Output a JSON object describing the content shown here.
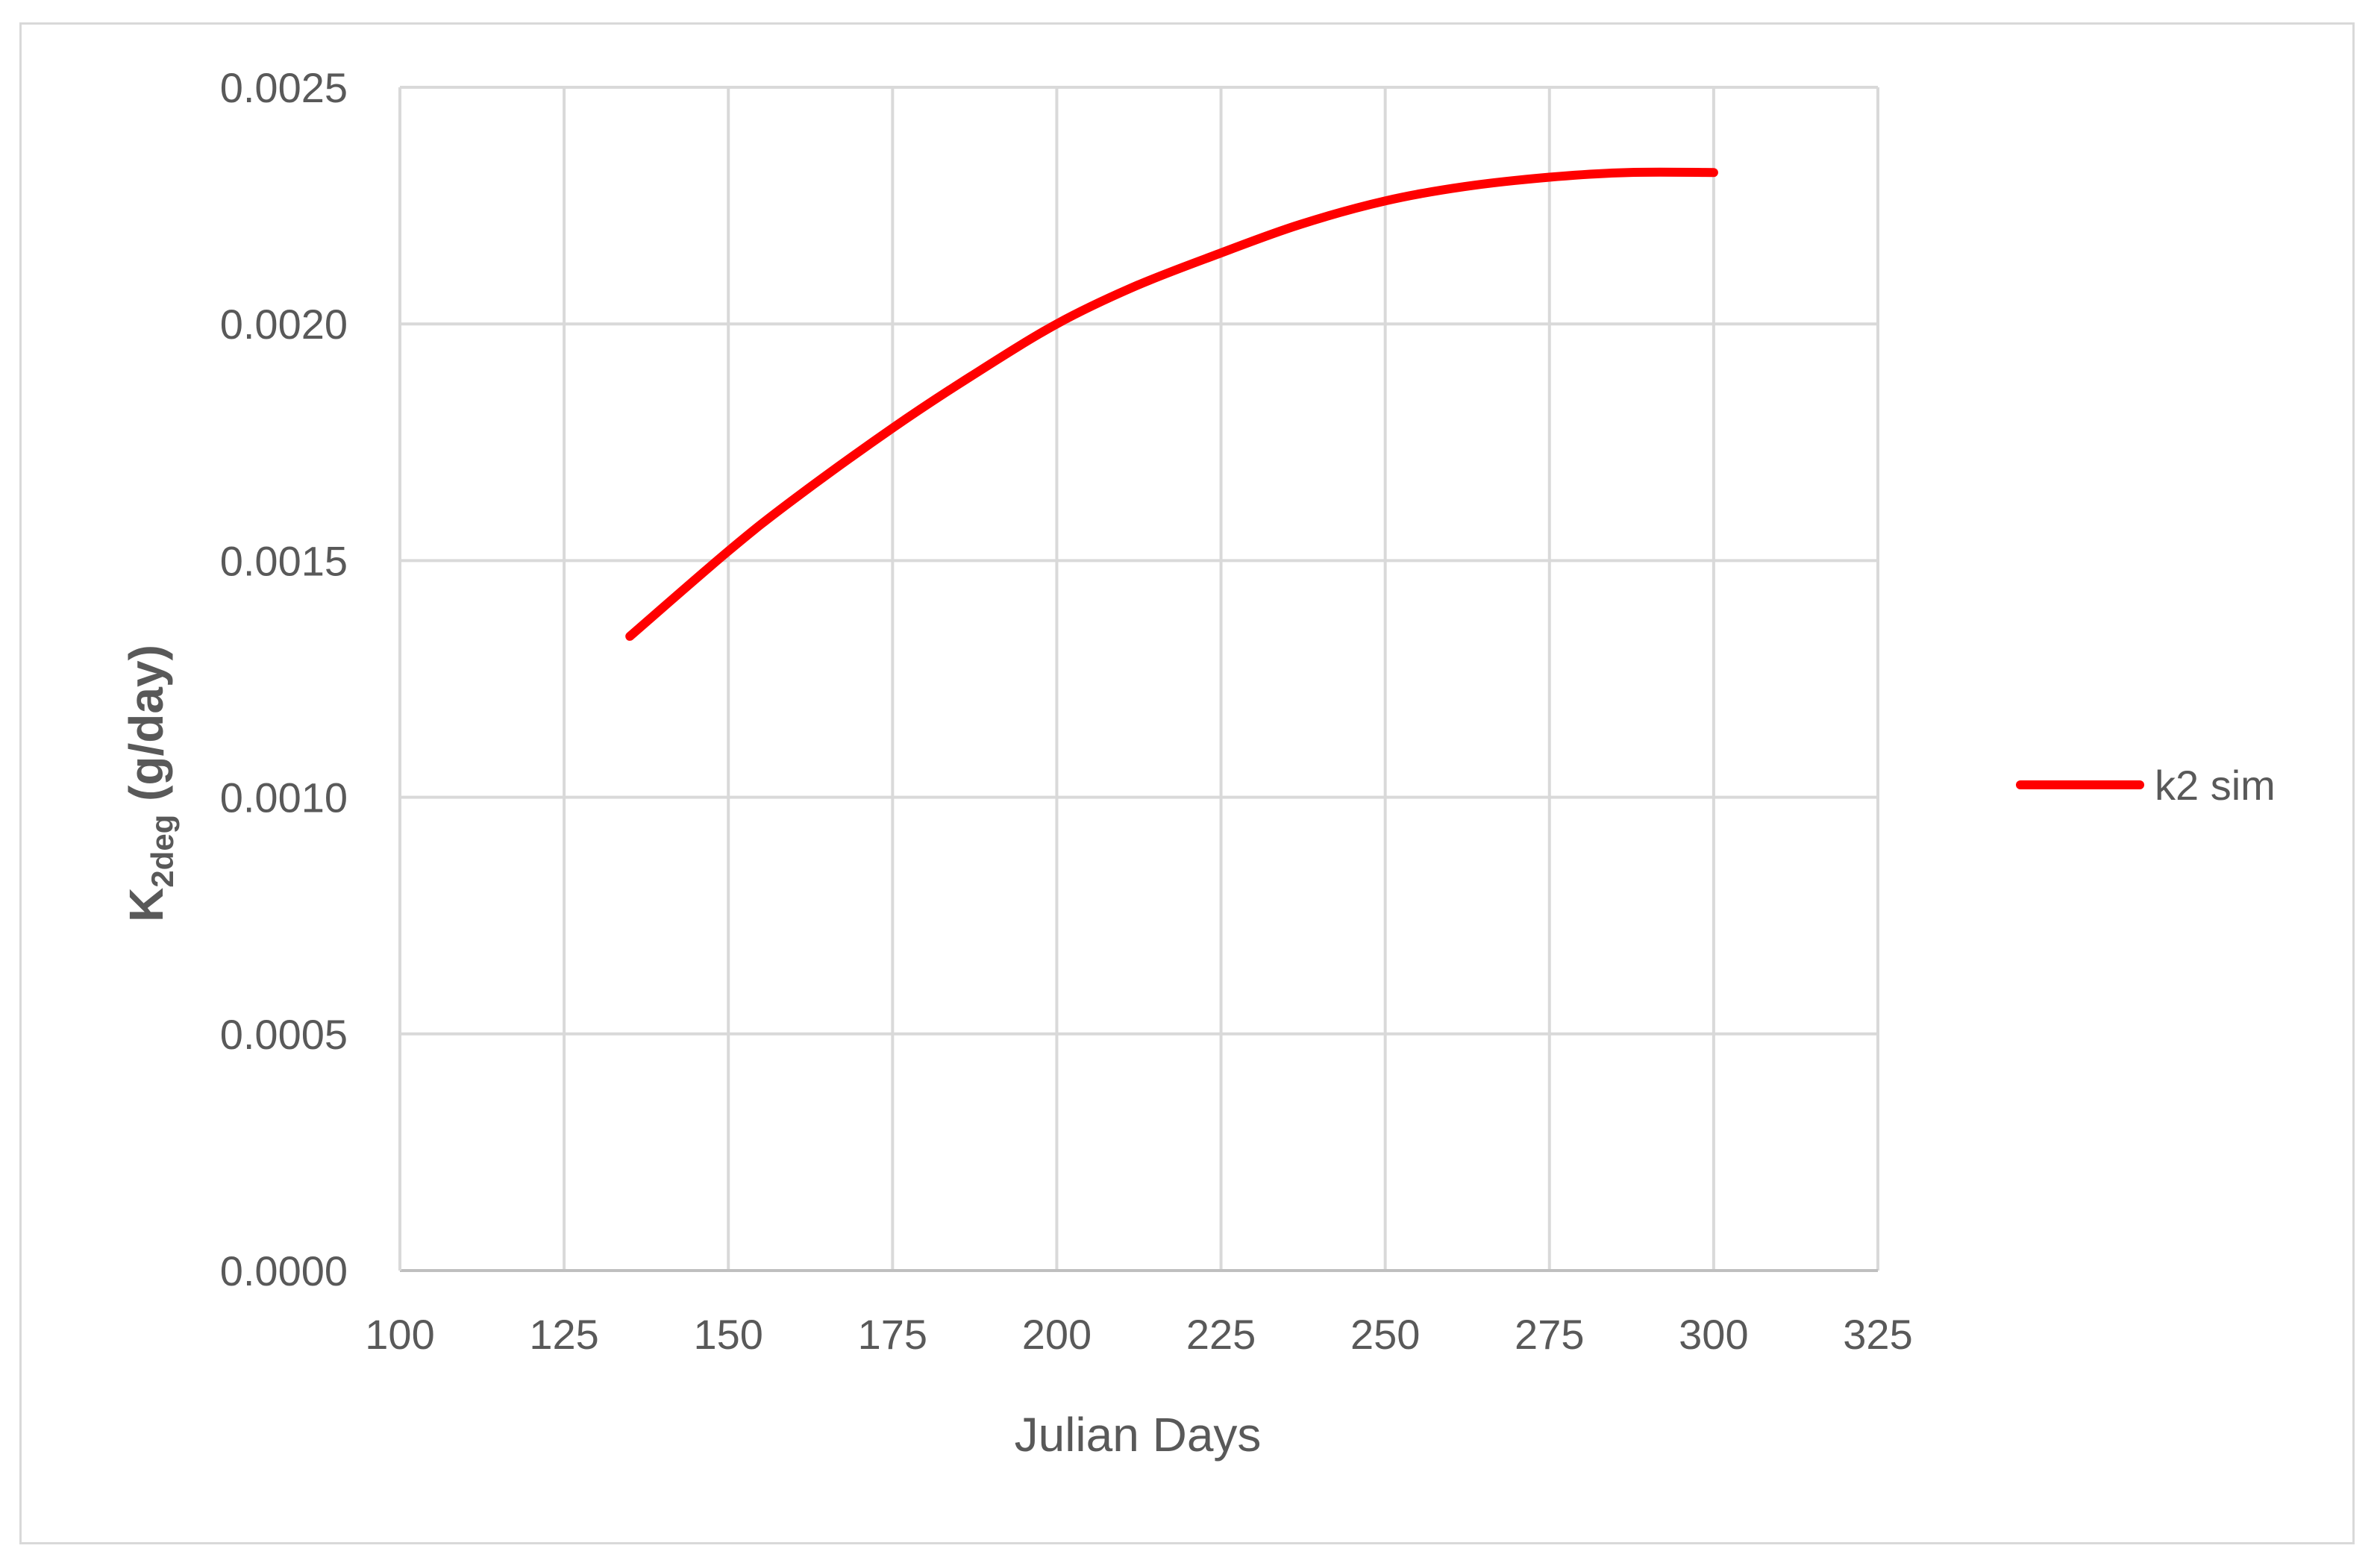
{
  "chart_data": {
    "type": "line",
    "xlabel": "Julian Days",
    "ylabel": {
      "main": "K",
      "subscript": "2deg",
      "unit": " (g/day)"
    },
    "xlim": [
      100,
      325
    ],
    "ylim": [
      0,
      0.0025
    ],
    "x_ticks": [
      "100",
      "125",
      "150",
      "175",
      "200",
      "225",
      "250",
      "275",
      "300",
      "325"
    ],
    "y_ticks": [
      "0.0000",
      "0.0005",
      "0.0010",
      "0.0015",
      "0.0020",
      "0.0025"
    ],
    "grid": true,
    "legend_position": "right",
    "series": [
      {
        "name": "k2 sim",
        "color": "#ff0000",
        "x": [
          135,
          150,
          160,
          175,
          187,
          200,
          212,
          225,
          237,
          250,
          262,
          275,
          287,
          300
        ],
        "y": [
          0.00134,
          0.00152,
          0.00163,
          0.00178,
          0.00189,
          0.002,
          0.00208,
          0.00215,
          0.00221,
          0.00226,
          0.00229,
          0.00231,
          0.00232,
          0.00232
        ]
      }
    ]
  }
}
